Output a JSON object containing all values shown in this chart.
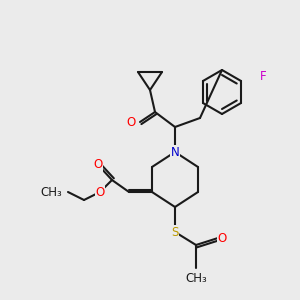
{
  "bg_color": "#ebebeb",
  "bond_color": "#1a1a1a",
  "bond_lw": 1.5,
  "colors": {
    "O": "#ff0000",
    "N": "#0000cc",
    "S": "#bb9900",
    "F": "#cc00cc",
    "C": "#1a1a1a"
  },
  "font_size": 8.5
}
